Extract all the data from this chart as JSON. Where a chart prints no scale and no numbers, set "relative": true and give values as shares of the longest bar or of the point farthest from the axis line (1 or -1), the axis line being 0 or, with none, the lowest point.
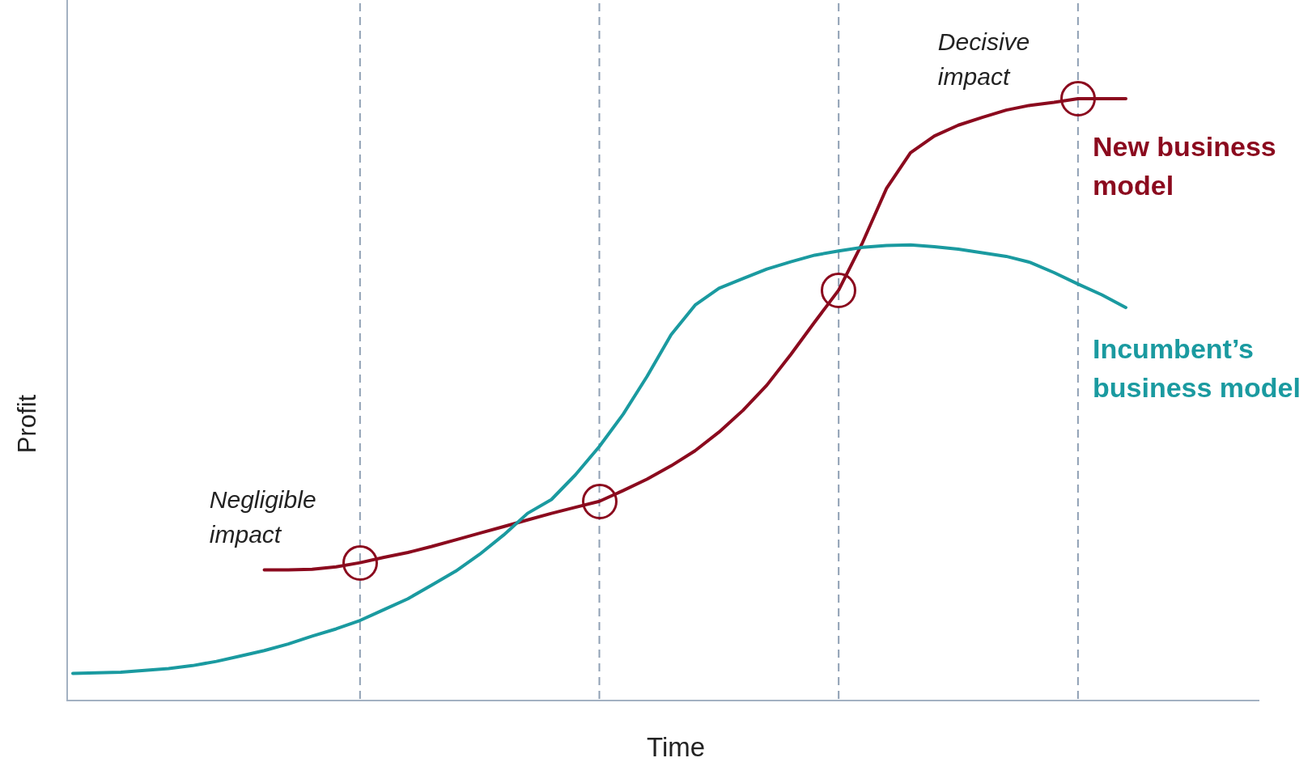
{
  "chart_data": {
    "type": "line",
    "relative": true,
    "xlabel": "Time",
    "ylabel": "Profit",
    "legend": "right",
    "grid": "x",
    "tick_labels": false,
    "line_style": "solid",
    "marker": "none",
    "categories": [
      null,
      null,
      null,
      null,
      null,
      null,
      null,
      null,
      null,
      null,
      null,
      null,
      null,
      null,
      null,
      null,
      null,
      null,
      null,
      null,
      null,
      null,
      null,
      null,
      null,
      null,
      null,
      null,
      null,
      null,
      null,
      null,
      null,
      null,
      null,
      null,
      null,
      null,
      null,
      null,
      null,
      null,
      null,
      null,
      null
    ],
    "series": [
      {
        "name": "Incumbent’s business model",
        "color": "#1a9aa0",
        "values": [
          0.045,
          0.046,
          0.047,
          0.05,
          0.053,
          0.058,
          0.065,
          0.074,
          0.083,
          0.094,
          0.107,
          0.119,
          0.133,
          0.151,
          0.169,
          0.192,
          0.215,
          0.243,
          0.275,
          0.311,
          0.334,
          0.375,
          0.422,
          0.476,
          0.539,
          0.608,
          0.657,
          0.685,
          0.701,
          0.717,
          0.729,
          0.74,
          0.747,
          0.753,
          0.756,
          0.757,
          0.754,
          0.75,
          0.744,
          0.738,
          0.728,
          0.711,
          0.692,
          0.674,
          0.653
        ]
      },
      {
        "name": "New business model",
        "color": "#8b0a1e",
        "values": [
          null,
          null,
          null,
          null,
          null,
          null,
          null,
          null,
          0.217,
          0.217,
          0.218,
          0.222,
          0.229,
          0.238,
          0.246,
          0.256,
          0.267,
          0.278,
          0.289,
          0.3,
          0.311,
          0.321,
          0.331,
          0.349,
          0.368,
          0.39,
          0.415,
          0.446,
          0.482,
          0.524,
          0.575,
          0.629,
          0.682,
          0.761,
          0.851,
          0.91,
          0.938,
          0.956,
          0.969,
          0.981,
          0.989,
          0.994,
          1,
          1,
          1
        ]
      }
    ],
    "annotations": [
      "Negligible impact",
      "Decisive impact"
    ]
  }
}
